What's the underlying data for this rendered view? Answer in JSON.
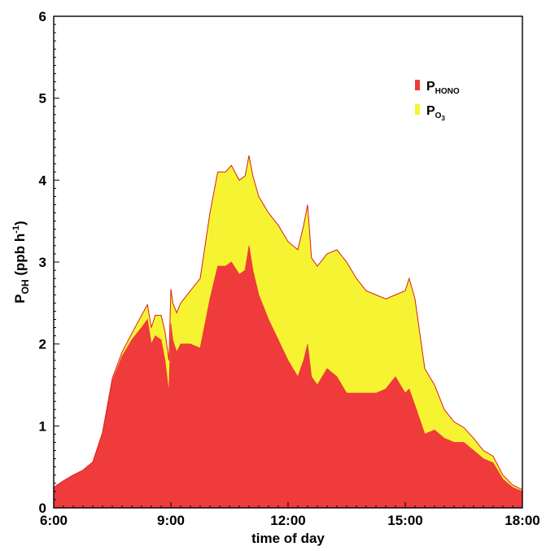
{
  "chart_data": {
    "type": "area",
    "stacked": true,
    "xlabel": "time of day",
    "ylabel_main": "P",
    "ylabel_sub": "OH",
    "ylabel_unit": " (ppb h",
    "ylabel_sup": "-1",
    "ylabel_close": ")",
    "x_unit": "hours",
    "xlim": [
      6,
      18
    ],
    "ylim": [
      0,
      6
    ],
    "x_ticks": [
      {
        "value": 6,
        "label": "6:00"
      },
      {
        "value": 9,
        "label": "9:00"
      },
      {
        "value": 12,
        "label": "12:00"
      },
      {
        "value": 15,
        "label": "15:00"
      },
      {
        "value": 18,
        "label": "18:00"
      }
    ],
    "y_ticks": [
      {
        "value": 0,
        "label": "0"
      },
      {
        "value": 1,
        "label": "1"
      },
      {
        "value": 2,
        "label": "2"
      },
      {
        "value": 3,
        "label": "3"
      },
      {
        "value": 4,
        "label": "4"
      },
      {
        "value": 5,
        "label": "5"
      },
      {
        "value": 6,
        "label": "6"
      }
    ],
    "grid": false,
    "legend_position": "top-right",
    "x": [
      6.0,
      6.25,
      6.5,
      6.75,
      7.0,
      7.25,
      7.5,
      7.75,
      8.0,
      8.25,
      8.4,
      8.5,
      8.6,
      8.75,
      8.85,
      8.95,
      9.0,
      9.05,
      9.15,
      9.25,
      9.5,
      9.75,
      10.0,
      10.2,
      10.4,
      10.55,
      10.75,
      10.9,
      11.0,
      11.1,
      11.25,
      11.5,
      11.75,
      12.0,
      12.25,
      12.4,
      12.5,
      12.6,
      12.75,
      13.0,
      13.25,
      13.5,
      13.75,
      14.0,
      14.25,
      14.5,
      14.75,
      15.0,
      15.1,
      15.25,
      15.5,
      15.75,
      16.0,
      16.25,
      16.5,
      16.75,
      17.0,
      17.25,
      17.5,
      17.75,
      18.0
    ],
    "series": [
      {
        "name_main": "P",
        "name_sub": "HONO",
        "color": "#ef3b3b",
        "values": [
          0.25,
          0.33,
          0.4,
          0.45,
          0.55,
          0.9,
          1.55,
          1.85,
          2.05,
          2.2,
          2.3,
          2.0,
          2.1,
          2.05,
          1.8,
          1.4,
          2.25,
          2.05,
          1.9,
          2.0,
          2.0,
          1.95,
          2.55,
          2.95,
          2.95,
          3.0,
          2.85,
          2.9,
          3.2,
          2.9,
          2.6,
          2.3,
          2.05,
          1.8,
          1.6,
          1.8,
          2.0,
          1.6,
          1.5,
          1.7,
          1.6,
          1.4,
          1.4,
          1.4,
          1.4,
          1.45,
          1.6,
          1.4,
          1.45,
          1.25,
          0.9,
          0.95,
          0.85,
          0.8,
          0.8,
          0.7,
          0.6,
          0.55,
          0.35,
          0.25,
          0.2
        ]
      },
      {
        "name_main": "P",
        "name_sub": "O",
        "name_subsub": "3",
        "color": "#f6f432",
        "values": [
          0.0,
          0.0,
          0.0,
          0.01,
          0.01,
          0.02,
          0.03,
          0.05,
          0.08,
          0.15,
          0.18,
          0.2,
          0.25,
          0.3,
          0.35,
          0.4,
          0.42,
          0.45,
          0.48,
          0.5,
          0.65,
          0.85,
          1.05,
          1.15,
          1.15,
          1.18,
          1.15,
          1.15,
          1.1,
          1.15,
          1.2,
          1.3,
          1.4,
          1.45,
          1.55,
          1.65,
          1.7,
          1.45,
          1.45,
          1.4,
          1.55,
          1.6,
          1.4,
          1.25,
          1.2,
          1.1,
          1.0,
          1.25,
          1.35,
          1.3,
          0.8,
          0.55,
          0.35,
          0.25,
          0.18,
          0.15,
          0.1,
          0.08,
          0.05,
          0.03,
          0.02
        ]
      }
    ]
  }
}
